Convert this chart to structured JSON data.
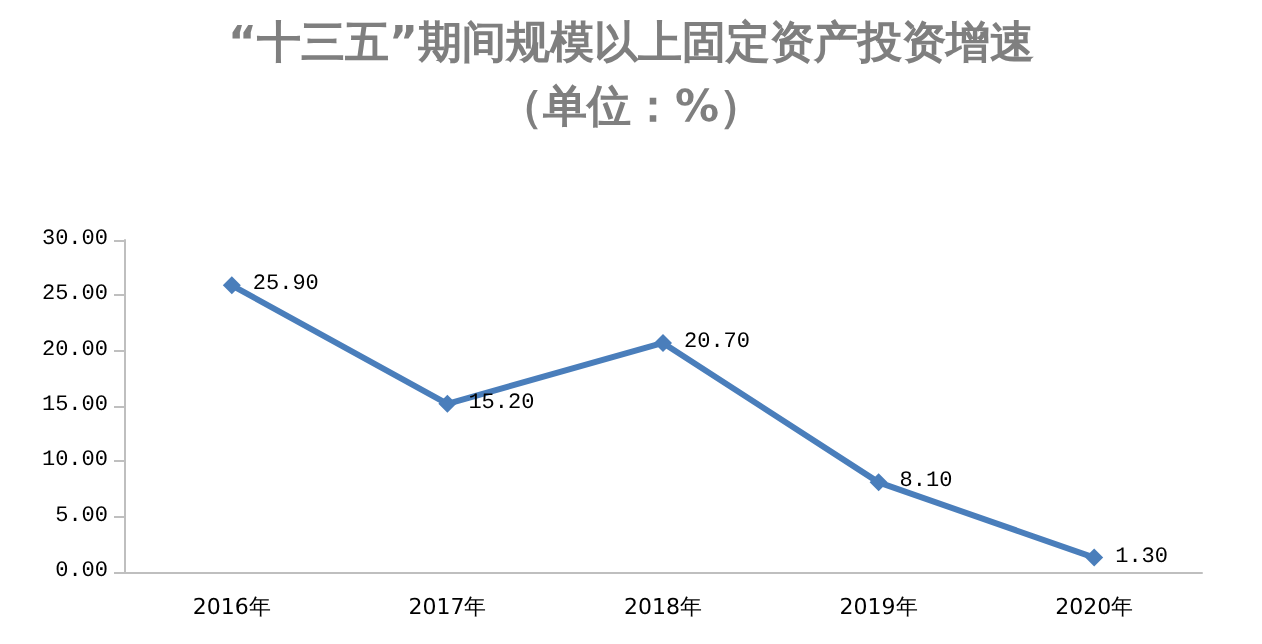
{
  "chart_data": {
    "type": "line",
    "title": "“十三五”期间规模以上固定资产投资增速",
    "subtitle": "（单位：%）",
    "categories": [
      "2016年",
      "2017年",
      "2018年",
      "2019年",
      "2020年"
    ],
    "series": [
      {
        "color": "#4a7ebb",
        "values": [
          25.9,
          15.2,
          20.7,
          8.1,
          1.3
        ],
        "value_labels": [
          "25.90",
          "15.20",
          "20.70",
          "8.10",
          "1.30"
        ]
      }
    ],
    "ylim": [
      0,
      30
    ],
    "yticks": [
      {
        "value": 0,
        "label": "0.00"
      },
      {
        "value": 5,
        "label": "5.00"
      },
      {
        "value": 10,
        "label": "10.00"
      },
      {
        "value": 15,
        "label": "15.00"
      },
      {
        "value": 20,
        "label": "20.00"
      },
      {
        "value": 25,
        "label": "25.00"
      },
      {
        "value": 30,
        "label": "30.00"
      }
    ],
    "grid": false,
    "marker": "diamond",
    "line_style": "solid"
  }
}
